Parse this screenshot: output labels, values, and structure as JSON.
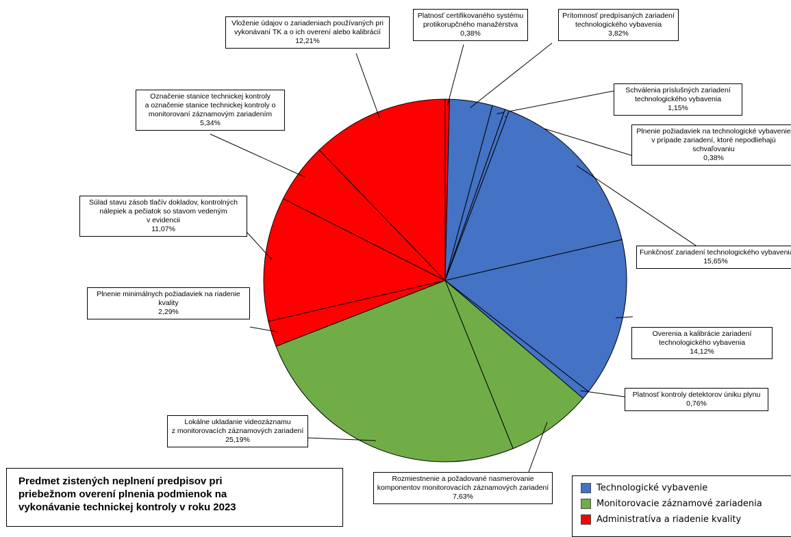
{
  "chart_data": {
    "type": "pie",
    "title": "Predmet zistených neplnení predpisov pri\npriebežnom overení plnenia podmienok na\nvykonávanie technickej kontroly v roku 2023",
    "legend_position": "bottom-right",
    "groups": [
      {
        "name": "Technologické vybavenie",
        "color": "#4472c4"
      },
      {
        "name": "Monitorovacie záznamové zariadenia",
        "color": "#70ad47"
      },
      {
        "name": "Administratíva a riadenie kvality",
        "color": "#ff0000"
      }
    ],
    "slices": [
      {
        "label": [
          "Platnosť certifikovaného systému",
          "protikorupčného manažérstva"
        ],
        "value": 0.38,
        "display": "0,38%",
        "group": 2
      },
      {
        "label": [
          "Prítomnosť predpísaných zariadení",
          "technologického vybavenia"
        ],
        "value": 3.82,
        "display": "3,82%",
        "group": 0
      },
      {
        "label": [
          "Schválenia príslušných zariadení",
          "technologického vybavenia"
        ],
        "value": 1.15,
        "display": "1,15%",
        "group": 0
      },
      {
        "label": [
          "Plnenie požiadaviek na technologické vybavenie",
          "v prípade zariadení, ktoré nepodliehajú",
          "schvaľovaniu"
        ],
        "value": 0.38,
        "display": "0,38%",
        "group": 0
      },
      {
        "label": [
          "Funkčnosť zariadení technologického vybavenia"
        ],
        "value": 15.65,
        "display": "15,65%",
        "group": 0
      },
      {
        "label": [
          "Overenia a kalibrácie zariadení",
          "technologického vybavenia"
        ],
        "value": 14.12,
        "display": "14,12%",
        "group": 0
      },
      {
        "label": [
          "Platnosť kontroly detektorov úniku plynu"
        ],
        "value": 0.76,
        "display": "0,76%",
        "group": 0
      },
      {
        "label": [
          "Rozmiestnenie a požadované nasmerovanie",
          "komponentov monitorovacích záznamových zariadení"
        ],
        "value": 7.63,
        "display": "7,63%",
        "group": 1
      },
      {
        "label": [
          "Lokálne ukladanie videozáznamu",
          "z monitorovacích záznamových zariadení"
        ],
        "value": 25.19,
        "display": "25,19%",
        "group": 1
      },
      {
        "label": [
          "Plnenie minimálnych požiadaviek na riadenie",
          "kvality"
        ],
        "value": 2.29,
        "display": "2,29%",
        "group": 2
      },
      {
        "label": [
          "Súlad stavu zásob tlačív dokladov, kontrolných",
          "nálepiek a pečiatok so stavom vedeným",
          "v evidencii"
        ],
        "value": 11.07,
        "display": "11,07%",
        "group": 2
      },
      {
        "label": [
          "Označenie stanice technickej kontroly",
          "a označenie stanice technickej kontroly o",
          "monitorovaní záznamovým zariadením"
        ],
        "value": 5.34,
        "display": "5,34%",
        "group": 2
      },
      {
        "label": [
          "Vloženie údajov o zariadeniach používaných pri",
          "vykonávaní TK a o ich overení alebo kalibrácií"
        ],
        "value": 12.21,
        "display": "12,21%",
        "group": 2
      }
    ]
  }
}
